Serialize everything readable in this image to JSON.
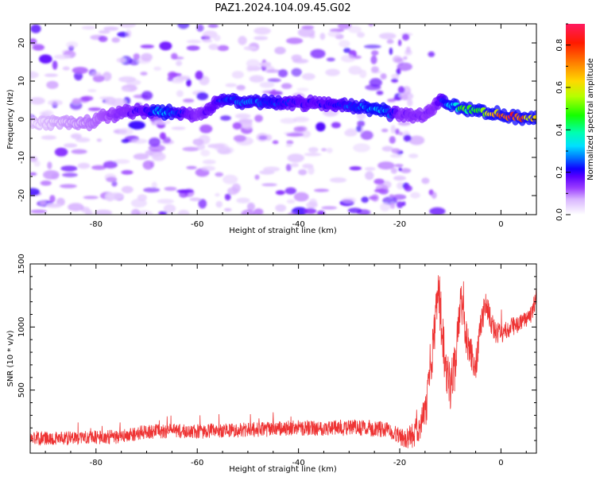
{
  "title": "PAZ1.2024.104.09.45.G02",
  "chart_data": [
    {
      "type": "heatmap",
      "xlabel": "Height of straight line (km)",
      "ylabel": "Frequency (Hz)",
      "xlim": [
        -93,
        7
      ],
      "ylim": [
        -25,
        25
      ],
      "xticks": [
        -80,
        -60,
        -40,
        -20,
        0
      ],
      "yticks": [
        -20,
        -10,
        0,
        10,
        20
      ],
      "colorbar": {
        "label": "Normalized spectral amplitude",
        "range": [
          0,
          0.9
        ],
        "ticks": [
          0.0,
          0.2,
          0.4,
          0.6,
          0.8
        ],
        "colormap": "rainbow-purple-to-red"
      },
      "ridge": {
        "description_points": [
          [
            -93,
            -1
          ],
          [
            -82,
            -1
          ],
          [
            -75,
            2
          ],
          [
            -67,
            2
          ],
          [
            -60,
            1
          ],
          [
            -55,
            5
          ],
          [
            -45,
            4.5
          ],
          [
            -35,
            4
          ],
          [
            -25,
            3
          ],
          [
            -22,
            1.5
          ],
          [
            -15,
            1
          ],
          [
            -12,
            5
          ],
          [
            -8,
            3
          ],
          [
            -4,
            2
          ],
          [
            0,
            1
          ],
          [
            3,
            0.5
          ],
          [
            7,
            0.5
          ]
        ],
        "amplitude_points": [
          [
            -93,
            0.02
          ],
          [
            -80,
            0.1
          ],
          [
            -70,
            0.2
          ],
          [
            -67,
            0.3
          ],
          [
            -60,
            0.15
          ],
          [
            -54,
            0.25
          ],
          [
            -45,
            0.25
          ],
          [
            -40,
            0.2
          ],
          [
            -35,
            0.2
          ],
          [
            -23,
            0.3
          ],
          [
            -20,
            0.15
          ],
          [
            -13,
            0.15
          ],
          [
            -10,
            0.3
          ],
          [
            -8,
            0.45
          ],
          [
            -4,
            0.5
          ],
          [
            -2,
            0.6
          ],
          [
            0,
            0.7
          ],
          [
            2,
            0.8
          ],
          [
            4,
            0.75
          ],
          [
            7,
            0.6
          ]
        ]
      }
    },
    {
      "type": "line",
      "xlabel": "Height of straight line (km)",
      "ylabel": "SNR (10 * v/v)",
      "xlim": [
        -93,
        7
      ],
      "ylim": [
        0,
        1500
      ],
      "xticks": [
        -80,
        -60,
        -40,
        -20,
        0
      ],
      "yticks": [
        500,
        1000,
        1500
      ],
      "series": [
        {
          "color": "#ee3333",
          "envelope": [
            [
              -93,
              120
            ],
            [
              -85,
              120
            ],
            [
              -80,
              125
            ],
            [
              -75,
              130
            ],
            [
              -70,
              170
            ],
            [
              -65,
              175
            ],
            [
              -60,
              170
            ],
            [
              -55,
              180
            ],
            [
              -50,
              185
            ],
            [
              -45,
              190
            ],
            [
              -40,
              200
            ],
            [
              -35,
              200
            ],
            [
              -30,
              200
            ],
            [
              -25,
              195
            ],
            [
              -22,
              180
            ],
            [
              -19,
              110
            ],
            [
              -17,
              150
            ],
            [
              -15,
              300
            ],
            [
              -14,
              600
            ],
            [
              -13,
              1000
            ],
            [
              -12.5,
              1350
            ],
            [
              -12,
              1150
            ],
            [
              -11,
              700
            ],
            [
              -10,
              500
            ],
            [
              -9,
              700
            ],
            [
              -8,
              1200
            ],
            [
              -7,
              950
            ],
            [
              -6,
              800
            ],
            [
              -5,
              700
            ],
            [
              -4,
              1000
            ],
            [
              -3,
              1200
            ],
            [
              -2,
              1050
            ],
            [
              -1,
              950
            ],
            [
              0,
              950
            ],
            [
              2,
              1000
            ],
            [
              4,
              1030
            ],
            [
              6,
              1100
            ],
            [
              7,
              1250
            ]
          ],
          "noise_amplitude": [
            [
              -93,
              55
            ],
            [
              -20,
              65
            ],
            [
              -16,
              120
            ],
            [
              -12,
              220
            ],
            [
              -8,
              170
            ],
            [
              -4,
              110
            ],
            [
              0,
              80
            ],
            [
              7,
              70
            ]
          ]
        }
      ]
    }
  ]
}
